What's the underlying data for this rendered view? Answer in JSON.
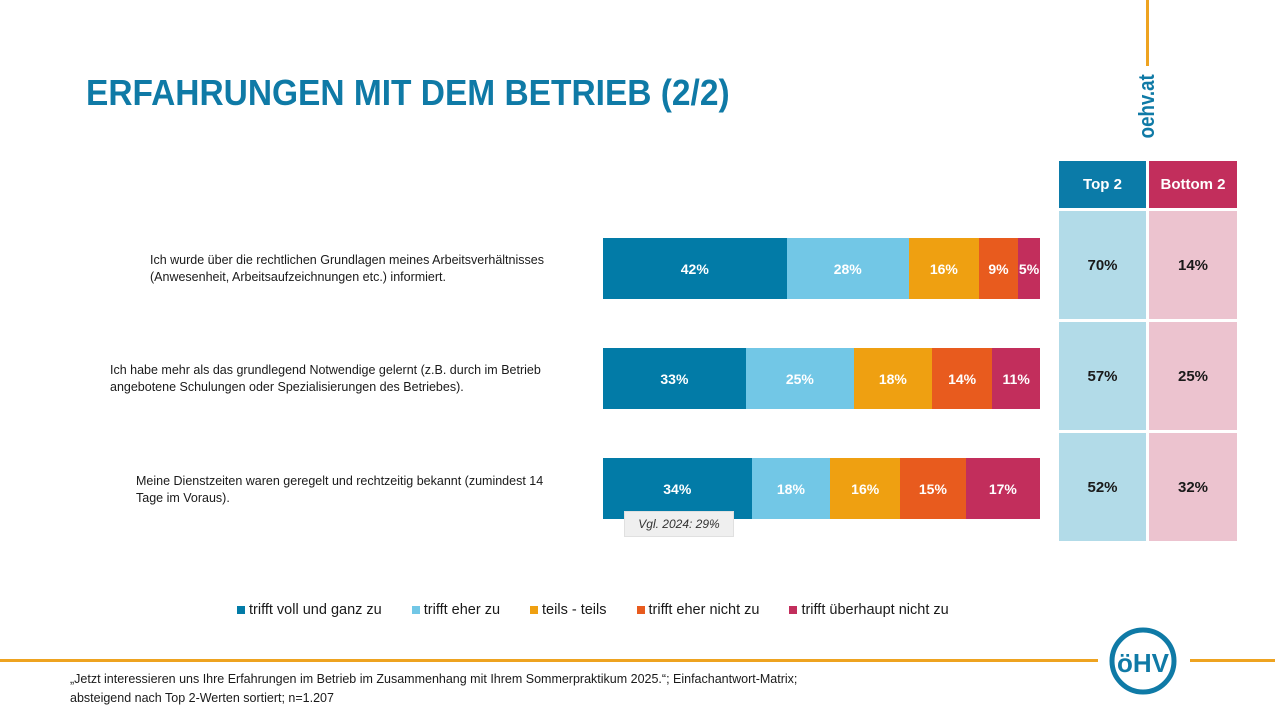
{
  "header": {
    "title": "ERFAHRUNGEN MIT DEM BETRIEB (2/2)",
    "brand_url": "oehv.at"
  },
  "colors": {
    "brand_blue": "#0f7aa6",
    "accent_orange": "#eea320",
    "series": [
      "#027ba7",
      "#72c7e6",
      "#efa011",
      "#e85b1e",
      "#c22e5c"
    ],
    "top2_header": "#0b7ba8",
    "bottom2_header": "#c22e5c",
    "top2_cell": "#b2dbe8",
    "bottom2_cell": "#ecc3cf"
  },
  "chart_data": {
    "type": "bar",
    "orientation": "horizontal",
    "stacked": true,
    "title": "ERFAHRUNGEN MIT DEM BETRIEB (2/2)",
    "xlabel": "",
    "ylabel": "",
    "xlim": [
      0,
      100
    ],
    "unit": "%",
    "categories": [
      "Ich wurde über die rechtlichen Grundlagen meines Arbeitsverhältnisses (Anwesenheit, Arbeitsaufzeichnungen etc.) informiert.",
      "Ich habe mehr als das grundlegend Notwendige gelernt (z.B. durch im Betrieb angebotene Schulungen oder Spezialisierungen des Betriebes).",
      "Meine Dienstzeiten waren geregelt und rechtzeitig bekannt (zumindest 14 Tage im Voraus)."
    ],
    "series": [
      {
        "name": "trifft voll und ganz zu",
        "values": [
          42,
          33,
          34
        ]
      },
      {
        "name": "trifft eher zu",
        "values": [
          28,
          25,
          18
        ]
      },
      {
        "name": "teils - teils",
        "values": [
          16,
          18,
          16
        ]
      },
      {
        "name": "trifft eher nicht zu",
        "values": [
          9,
          14,
          15
        ]
      },
      {
        "name": "trifft überhaupt nicht zu",
        "values": [
          5,
          11,
          17
        ]
      }
    ],
    "legend_position": "bottom",
    "annotations": [
      {
        "category_index": 2,
        "text": "Vgl. 2024: 29%"
      }
    ],
    "summary_table": {
      "headers": [
        "Top 2",
        "Bottom 2"
      ],
      "rows": [
        [
          "70%",
          "14%"
        ],
        [
          "57%",
          "25%"
        ],
        [
          "52%",
          "32%"
        ]
      ]
    }
  },
  "questions": [
    {
      "line1": "Ich wurde über die rechtlichen Grundlagen meines Arbeitsverhältnisses",
      "line2": "(Anwesenheit, Arbeitsaufzeichnungen etc.) informiert."
    },
    {
      "line1": "Ich habe mehr als das grundlegend Notwendige gelernt (z.B. durch im Betrieb",
      "line2": "angebotene Schulungen oder Spezialisierungen des Betriebes)."
    },
    {
      "line1": "Meine Dienstzeiten waren geregelt und rechtzeitig bekannt (zumindest 14",
      "line2": "Tage im Voraus)."
    }
  ],
  "note": "Vgl. 2024: 29%",
  "table": {
    "top2_label": "Top 2",
    "bottom2_label": "Bottom 2",
    "rows": [
      {
        "top2": "70%",
        "bottom2": "14%"
      },
      {
        "top2": "57%",
        "bottom2": "25%"
      },
      {
        "top2": "52%",
        "bottom2": "32%"
      }
    ]
  },
  "legend": [
    "trifft voll und ganz zu",
    "trifft eher zu",
    "teils - teils",
    "trifft eher nicht zu",
    "trifft überhaupt nicht zu"
  ],
  "footnote": {
    "line1": "„Jetzt interessieren uns Ihre Erfahrungen im Betrieb im Zusammenhang mit Ihrem Sommerpraktikum 2025.“; Einfachantwort-Matrix;",
    "line2": "absteigend nach Top 2-Werten sortiert; n=1.207"
  },
  "logo": {
    "text": "öHV",
    "icon": "oehv-logo-icon"
  }
}
